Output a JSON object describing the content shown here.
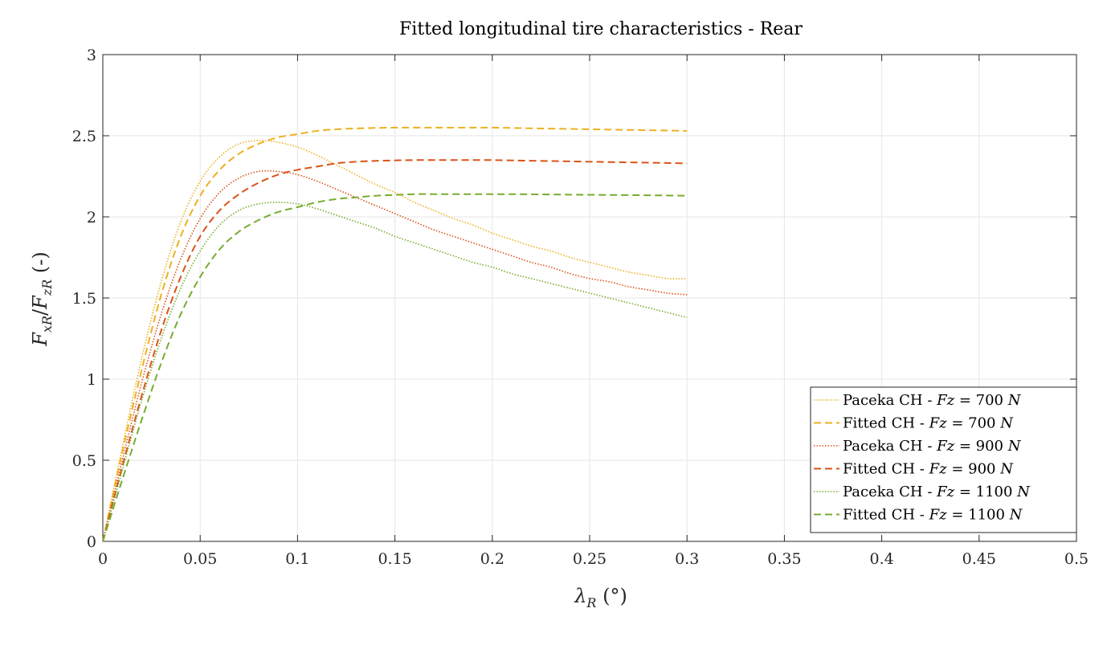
{
  "chart_data": {
    "type": "line",
    "title": "Fitted longitudinal tire characteristics - Rear",
    "xlabel": "λ_R (°)",
    "ylabel": "F_xR/F_zR (-)",
    "xlim": [
      0,
      0.5
    ],
    "ylim": [
      0,
      3
    ],
    "xticks": [
      0,
      0.05,
      0.1,
      0.15,
      0.2,
      0.25,
      0.3,
      0.35,
      0.4,
      0.45,
      0.5
    ],
    "xtick_labels": [
      "0",
      "0.05",
      "0.1",
      "0.15",
      "0.2",
      "0.25",
      "0.3",
      "0.35",
      "0.4",
      "0.45",
      "0.5"
    ],
    "yticks": [
      0,
      0.5,
      1,
      1.5,
      2,
      2.5,
      3
    ],
    "ytick_labels": [
      "0",
      "0.5",
      "1",
      "1.5",
      "2",
      "2.5",
      "3"
    ],
    "grid": true,
    "legend_position": "bottom-right",
    "series": [
      {
        "name": "Paceka CH - Fz = 700 N",
        "color": "#EDB120",
        "style": "dotted",
        "x": [
          0,
          0.01,
          0.02,
          0.03,
          0.04,
          0.05,
          0.06,
          0.07,
          0.08,
          0.09,
          0.1,
          0.11,
          0.12,
          0.13,
          0.14,
          0.15,
          0.16,
          0.17,
          0.18,
          0.19,
          0.2,
          0.21,
          0.22,
          0.23,
          0.24,
          0.25,
          0.26,
          0.27,
          0.28,
          0.29,
          0.3
        ],
        "y": [
          0,
          0.58,
          1.13,
          1.6,
          1.97,
          2.22,
          2.37,
          2.45,
          2.47,
          2.46,
          2.43,
          2.38,
          2.32,
          2.26,
          2.2,
          2.15,
          2.09,
          2.04,
          1.99,
          1.95,
          1.9,
          1.86,
          1.82,
          1.79,
          1.75,
          1.72,
          1.69,
          1.66,
          1.64,
          1.62,
          1.62
        ]
      },
      {
        "name": "Fitted CH - Fz = 700 N",
        "color": "#EDB120",
        "style": "dashed",
        "x": [
          0,
          0.01,
          0.02,
          0.03,
          0.04,
          0.05,
          0.06,
          0.07,
          0.08,
          0.09,
          0.1,
          0.11,
          0.12,
          0.13,
          0.14,
          0.15,
          0.16,
          0.17,
          0.18,
          0.19,
          0.2,
          0.21,
          0.22,
          0.23,
          0.24,
          0.25,
          0.26,
          0.27,
          0.28,
          0.29,
          0.3
        ],
        "y": [
          0,
          0.55,
          1.06,
          1.52,
          1.88,
          2.13,
          2.29,
          2.39,
          2.45,
          2.49,
          2.51,
          2.53,
          2.54,
          2.545,
          2.548,
          2.55,
          2.55,
          2.55,
          2.55,
          2.55,
          2.55,
          2.548,
          2.546,
          2.544,
          2.542,
          2.54,
          2.538,
          2.536,
          2.534,
          2.532,
          2.53
        ]
      },
      {
        "name": "Paceka CH - Fz = 900 N",
        "color": "#D95319",
        "style": "dotted",
        "x": [
          0,
          0.01,
          0.02,
          0.03,
          0.04,
          0.05,
          0.06,
          0.07,
          0.08,
          0.09,
          0.1,
          0.11,
          0.12,
          0.13,
          0.14,
          0.15,
          0.16,
          0.17,
          0.18,
          0.19,
          0.2,
          0.21,
          0.22,
          0.23,
          0.24,
          0.25,
          0.26,
          0.27,
          0.28,
          0.29,
          0.3
        ],
        "y": [
          0,
          0.5,
          0.98,
          1.4,
          1.74,
          1.99,
          2.15,
          2.24,
          2.28,
          2.28,
          2.26,
          2.22,
          2.17,
          2.12,
          2.07,
          2.02,
          1.97,
          1.92,
          1.88,
          1.84,
          1.8,
          1.76,
          1.72,
          1.69,
          1.65,
          1.62,
          1.6,
          1.57,
          1.55,
          1.53,
          1.52
        ]
      },
      {
        "name": "Fitted CH - Fz = 900 N",
        "color": "#D95319",
        "style": "dashed",
        "x": [
          0,
          0.01,
          0.02,
          0.03,
          0.04,
          0.05,
          0.06,
          0.07,
          0.08,
          0.09,
          0.1,
          0.11,
          0.12,
          0.13,
          0.14,
          0.15,
          0.16,
          0.17,
          0.18,
          0.19,
          0.2,
          0.21,
          0.22,
          0.23,
          0.24,
          0.25,
          0.26,
          0.27,
          0.28,
          0.29,
          0.3
        ],
        "y": [
          0,
          0.46,
          0.9,
          1.3,
          1.63,
          1.88,
          2.04,
          2.14,
          2.21,
          2.26,
          2.29,
          2.31,
          2.33,
          2.34,
          2.345,
          2.348,
          2.35,
          2.35,
          2.35,
          2.35,
          2.35,
          2.348,
          2.346,
          2.344,
          2.342,
          2.34,
          2.338,
          2.336,
          2.334,
          2.332,
          2.33
        ]
      },
      {
        "name": "Paceka CH - Fz = 1100 N",
        "color": "#77AC30",
        "style": "dotted",
        "x": [
          0,
          0.01,
          0.02,
          0.03,
          0.04,
          0.05,
          0.06,
          0.07,
          0.08,
          0.09,
          0.1,
          0.11,
          0.12,
          0.13,
          0.14,
          0.15,
          0.16,
          0.17,
          0.18,
          0.19,
          0.2,
          0.21,
          0.22,
          0.23,
          0.24,
          0.25,
          0.26,
          0.27,
          0.28,
          0.29,
          0.3
        ],
        "y": [
          0,
          0.44,
          0.87,
          1.25,
          1.56,
          1.79,
          1.95,
          2.04,
          2.08,
          2.09,
          2.08,
          2.05,
          2.01,
          1.97,
          1.93,
          1.88,
          1.84,
          1.8,
          1.76,
          1.72,
          1.69,
          1.65,
          1.62,
          1.59,
          1.56,
          1.53,
          1.5,
          1.47,
          1.44,
          1.41,
          1.38
        ]
      },
      {
        "name": "Fitted CH - Fz = 1100 N",
        "color": "#77AC30",
        "style": "dashed",
        "x": [
          0,
          0.01,
          0.02,
          0.03,
          0.04,
          0.05,
          0.06,
          0.07,
          0.08,
          0.09,
          0.1,
          0.11,
          0.12,
          0.13,
          0.14,
          0.15,
          0.16,
          0.17,
          0.18,
          0.19,
          0.2,
          0.21,
          0.22,
          0.23,
          0.24,
          0.25,
          0.26,
          0.27,
          0.28,
          0.29,
          0.3
        ],
        "y": [
          0,
          0.38,
          0.75,
          1.1,
          1.4,
          1.63,
          1.8,
          1.91,
          1.98,
          2.03,
          2.06,
          2.09,
          2.11,
          2.12,
          2.13,
          2.135,
          2.14,
          2.14,
          2.14,
          2.14,
          2.14,
          2.14,
          2.139,
          2.138,
          2.137,
          2.136,
          2.135,
          2.134,
          2.133,
          2.132,
          2.13
        ]
      }
    ]
  },
  "legend": [
    {
      "prefix": "Paceka CH - ",
      "var": "Fz",
      "value": "700",
      "unit": "N"
    },
    {
      "prefix": "Fitted CH - ",
      "var": "Fz",
      "value": "700",
      "unit": "N"
    },
    {
      "prefix": "Paceka CH - ",
      "var": "Fz",
      "value": "900",
      "unit": "N"
    },
    {
      "prefix": "Fitted CH - ",
      "var": "Fz",
      "value": "900",
      "unit": "N"
    },
    {
      "prefix": "Paceka CH - ",
      "var": "Fz",
      "value": "1100",
      "unit": "N"
    },
    {
      "prefix": "Fitted CH - ",
      "var": "Fz",
      "value": "1100",
      "unit": "N"
    }
  ]
}
